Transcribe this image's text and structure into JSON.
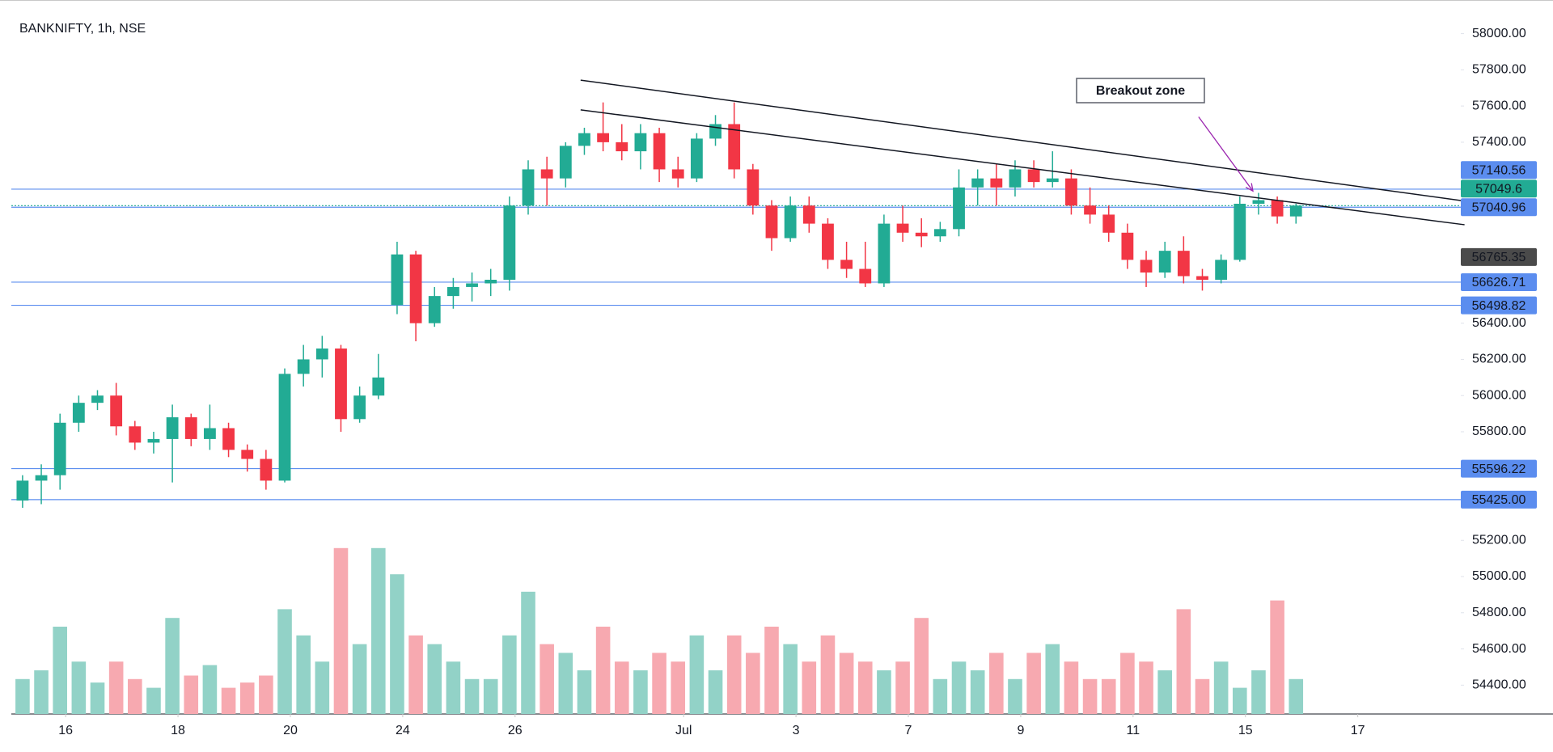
{
  "chart_data": {
    "type": "candlestick",
    "title": "BANKNIFTY, 1h, NSE",
    "up_color": "#22ab94",
    "down_color": "#f23645",
    "volume_up_color": "#92d2c7",
    "volume_down_color": "#f7a9b0",
    "ylim": [
      54400,
      58000
    ],
    "yticks": [
      {
        "value": 58000,
        "label": "58000.00"
      },
      {
        "value": 57800,
        "label": "57800.00"
      },
      {
        "value": 57600,
        "label": "57600.00"
      },
      {
        "value": 57400,
        "label": "57400.00"
      },
      {
        "value": 56400,
        "label": "56400.00"
      },
      {
        "value": 56200,
        "label": "56200.00"
      },
      {
        "value": 56000,
        "label": "56000.00"
      },
      {
        "value": 55800,
        "label": "55800.00"
      },
      {
        "value": 55200,
        "label": "55200.00"
      },
      {
        "value": 55000,
        "label": "55000.00"
      },
      {
        "value": 54800,
        "label": "54800.00"
      },
      {
        "value": 54600,
        "label": "54600.00"
      },
      {
        "value": 54400,
        "label": "54400.00"
      }
    ],
    "xlim": [
      -0.6,
      76.8
    ],
    "xticks": [
      {
        "value": 2.3,
        "label": "16"
      },
      {
        "value": 8.3,
        "label": "18"
      },
      {
        "value": 14.3,
        "label": "20"
      },
      {
        "value": 20.3,
        "label": "24"
      },
      {
        "value": 26.3,
        "label": "26"
      },
      {
        "value": 35.3,
        "label": "Jul"
      },
      {
        "value": 41.3,
        "label": "3"
      },
      {
        "value": 47.3,
        "label": "7"
      },
      {
        "value": 53.3,
        "label": "9"
      },
      {
        "value": 59.3,
        "label": "11"
      },
      {
        "value": 65.3,
        "label": "15"
      },
      {
        "value": 71.3,
        "label": "17"
      }
    ],
    "ohlc": [
      [
        55420,
        55560,
        55380,
        55530
      ],
      [
        55530,
        55620,
        55400,
        55560
      ],
      [
        55560,
        55900,
        55480,
        55850
      ],
      [
        55850,
        56000,
        55800,
        55960
      ],
      [
        55960,
        56030,
        55920,
        56000
      ],
      [
        56000,
        56070,
        55780,
        55830
      ],
      [
        55830,
        55860,
        55700,
        55740
      ],
      [
        55740,
        55800,
        55680,
        55760
      ],
      [
        55760,
        55950,
        55520,
        55880
      ],
      [
        55880,
        55900,
        55720,
        55760
      ],
      [
        55760,
        55950,
        55700,
        55820
      ],
      [
        55820,
        55850,
        55660,
        55700
      ],
      [
        55700,
        55730,
        55580,
        55650
      ],
      [
        55650,
        55700,
        55480,
        55530
      ],
      [
        55530,
        56150,
        55520,
        56120
      ],
      [
        56120,
        56280,
        56050,
        56200
      ],
      [
        56200,
        56330,
        56100,
        56260
      ],
      [
        56260,
        56280,
        55800,
        55870
      ],
      [
        55870,
        56050,
        55850,
        56000
      ],
      [
        56000,
        56230,
        55980,
        56100
      ],
      [
        56500,
        56850,
        56450,
        56780
      ],
      [
        56780,
        56800,
        56300,
        56400
      ],
      [
        56400,
        56600,
        56380,
        56550
      ],
      [
        56550,
        56650,
        56480,
        56600
      ],
      [
        56600,
        56680,
        56520,
        56620
      ],
      [
        56620,
        56700,
        56550,
        56640
      ],
      [
        56640,
        57100,
        56580,
        57050
      ],
      [
        57050,
        57300,
        57000,
        57250
      ],
      [
        57250,
        57320,
        57050,
        57200
      ],
      [
        57200,
        57400,
        57150,
        57380
      ],
      [
        57380,
        57480,
        57330,
        57450
      ],
      [
        57450,
        57620,
        57350,
        57400
      ],
      [
        57400,
        57500,
        57300,
        57350
      ],
      [
        57350,
        57500,
        57250,
        57450
      ],
      [
        57450,
        57480,
        57180,
        57250
      ],
      [
        57250,
        57320,
        57150,
        57200
      ],
      [
        57200,
        57450,
        57180,
        57420
      ],
      [
        57420,
        57550,
        57380,
        57500
      ],
      [
        57500,
        57620,
        57200,
        57250
      ],
      [
        57250,
        57280,
        57000,
        57050
      ],
      [
        57050,
        57080,
        56800,
        56870
      ],
      [
        56870,
        57100,
        56850,
        57050
      ],
      [
        57050,
        57100,
        56900,
        56950
      ],
      [
        56950,
        56980,
        56700,
        56750
      ],
      [
        56750,
        56850,
        56650,
        56700
      ],
      [
        56700,
        56850,
        56600,
        56620
      ],
      [
        56620,
        57000,
        56600,
        56950
      ],
      [
        56950,
        57050,
        56850,
        56900
      ],
      [
        56900,
        56980,
        56820,
        56880
      ],
      [
        56880,
        56960,
        56850,
        56920
      ],
      [
        56920,
        57250,
        56880,
        57150
      ],
      [
        57150,
        57250,
        57050,
        57200
      ],
      [
        57200,
        57280,
        57050,
        57150
      ],
      [
        57150,
        57300,
        57100,
        57250
      ],
      [
        57250,
        57300,
        57150,
        57180
      ],
      [
        57180,
        57350,
        57150,
        57200
      ],
      [
        57200,
        57250,
        57000,
        57050
      ],
      [
        57050,
        57150,
        56950,
        57000
      ],
      [
        57000,
        57050,
        56850,
        56900
      ],
      [
        56900,
        56950,
        56700,
        56750
      ],
      [
        56750,
        56800,
        56600,
        56680
      ],
      [
        56680,
        56850,
        56650,
        56800
      ],
      [
        56800,
        56880,
        56620,
        56660
      ],
      [
        56660,
        56700,
        56580,
        56640
      ],
      [
        56640,
        56780,
        56620,
        56750
      ],
      [
        56750,
        57100,
        56740,
        57060
      ],
      [
        57060,
        57120,
        57000,
        57080
      ],
      [
        57080,
        57100,
        56950,
        56990
      ],
      [
        56990,
        57060,
        56950,
        57050
      ]
    ],
    "volume": [
      20,
      25,
      50,
      30,
      18,
      30,
      20,
      15,
      55,
      22,
      28,
      15,
      18,
      22,
      60,
      45,
      30,
      95,
      40,
      95,
      80,
      45,
      40,
      30,
      20,
      20,
      45,
      70,
      40,
      35,
      25,
      50,
      30,
      25,
      35,
      30,
      45,
      25,
      45,
      35,
      50,
      40,
      30,
      45,
      35,
      30,
      25,
      30,
      55,
      20,
      30,
      25,
      35,
      20,
      35,
      40,
      30,
      20,
      20,
      35,
      30,
      25,
      60,
      20,
      30,
      15,
      25,
      65,
      20
    ],
    "vlim": [
      0,
      100
    ],
    "price_lines": [
      {
        "value": 57140.56,
        "color": "#5b8def"
      },
      {
        "value": 57049.6,
        "color": "#22ab94",
        "dotted": true
      },
      {
        "value": 57040.96,
        "color": "#5b8def"
      },
      {
        "value": 56765.35,
        "color": "#4a4a4a",
        "line": false
      },
      {
        "value": 56626.71,
        "color": "#5b8def"
      },
      {
        "value": 56498.82,
        "color": "#5b8def"
      },
      {
        "value": 55596.22,
        "color": "#5b8def"
      },
      {
        "value": 55425.0,
        "label": "55425.00",
        "color": "#5b8def"
      }
    ],
    "trendlines": [
      {
        "x": [
          29.8,
          77
        ],
        "y": [
          57743,
          57075
        ]
      },
      {
        "x": [
          29.8,
          77
        ],
        "y": [
          57579,
          56944
        ]
      }
    ],
    "annotation": {
      "text": "Breakout zone",
      "x": [
        62.8,
        65.7
      ],
      "y": [
        57540,
        57130
      ],
      "color": "#9c27b0"
    }
  }
}
